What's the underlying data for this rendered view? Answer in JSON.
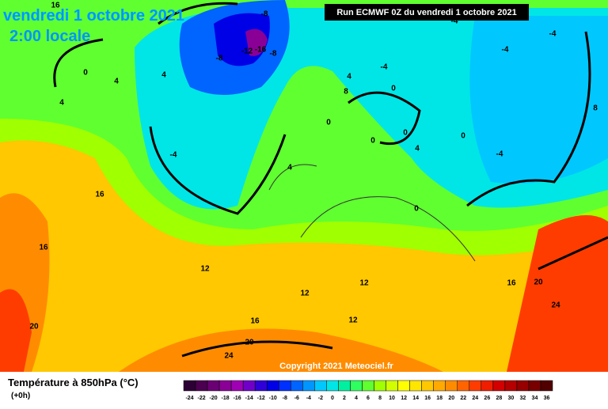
{
  "header": {
    "date": "vendredi 1 octobre 2021",
    "time": "2:00 locale",
    "run": "Run ECMWF 0Z du vendredi 1 octobre 2021"
  },
  "copyright": "Copyright 2021 Meteociel.fr",
  "legend": {
    "title": "Température à 850hPa (°C)",
    "lead": "(+0h)",
    "ticks": [
      -24,
      -22,
      -20,
      -18,
      -16,
      -14,
      -12,
      -10,
      -8,
      -6,
      -4,
      -2,
      0,
      2,
      4,
      6,
      8,
      10,
      12,
      14,
      16,
      18,
      20,
      22,
      24,
      26,
      28,
      30,
      32,
      34,
      36
    ],
    "colors": [
      "#2d0035",
      "#4b0050",
      "#6a0074",
      "#8a0096",
      "#a000b4",
      "#7000c8",
      "#3000d8",
      "#0000e6",
      "#0030ff",
      "#0064ff",
      "#0096ff",
      "#00c8ff",
      "#00e6e6",
      "#00f0a0",
      "#30ff60",
      "#60ff30",
      "#a0ff00",
      "#d2ff00",
      "#ffff00",
      "#ffe600",
      "#ffc800",
      "#ffaa00",
      "#ff8c00",
      "#ff6400",
      "#ff3c00",
      "#f01e00",
      "#d20000",
      "#b40000",
      "#960000",
      "#780000",
      "#500000"
    ]
  },
  "map": {
    "labels": [
      "16",
      "-8",
      "-12",
      "-16",
      "-8",
      "-8",
      "0",
      "4",
      "4",
      "4",
      "-4",
      "-4",
      "-4",
      "-4",
      "4",
      "8",
      "0",
      "0",
      "4",
      "0",
      "0",
      "4",
      "0",
      "-4",
      "8",
      "16",
      "16",
      "12",
      "12",
      "12",
      "16",
      "12",
      "20",
      "20",
      "24",
      "20",
      "24",
      "16",
      "0",
      "-4"
    ]
  }
}
